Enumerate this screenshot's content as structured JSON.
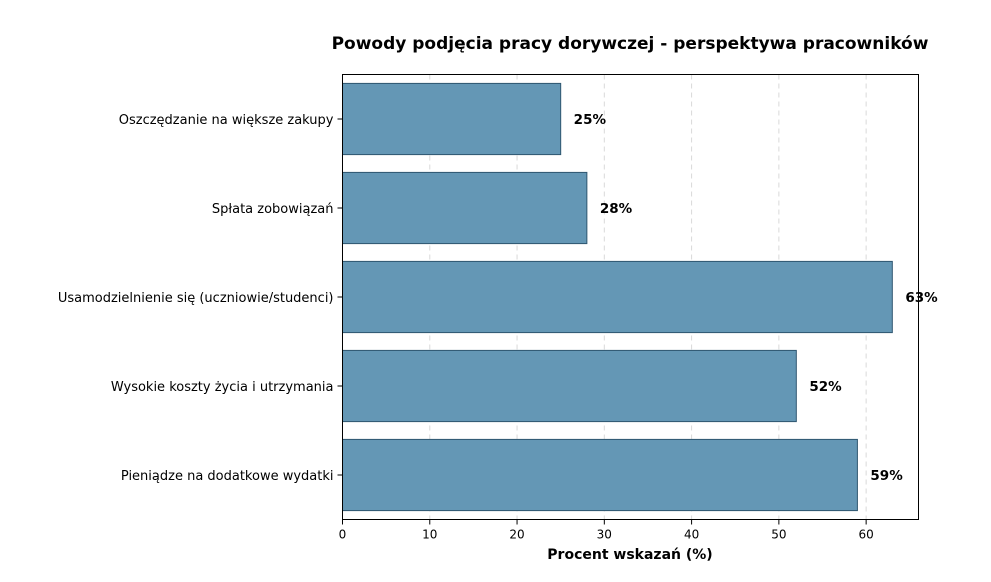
{
  "chart_data": {
    "type": "bar",
    "orientation": "horizontal",
    "title": "Powody podjęcia pracy dorywczej - perspektywa pracowników",
    "xlabel": "Procent wskazań (%)",
    "ylabel": "",
    "categories": [
      "Oszczędzanie na większe zakupy",
      "Spłata zobowiązań",
      "Usamodzielnienie się (uczniowie/studenci)",
      "Wysokie koszty życia i utrzymania",
      "Pieniądze na dodatkowe wydatki"
    ],
    "values": [
      25,
      28,
      63,
      52,
      59
    ],
    "data_labels": [
      "25%",
      "28%",
      "63%",
      "52%",
      "59%"
    ],
    "xlim": [
      0,
      66
    ],
    "xticks": [
      0,
      10,
      20,
      30,
      40,
      50,
      60
    ],
    "grid": "vertical dashed",
    "colors": {
      "bar_fill": "#6497b5",
      "bar_edge": "#2e5670"
    }
  }
}
